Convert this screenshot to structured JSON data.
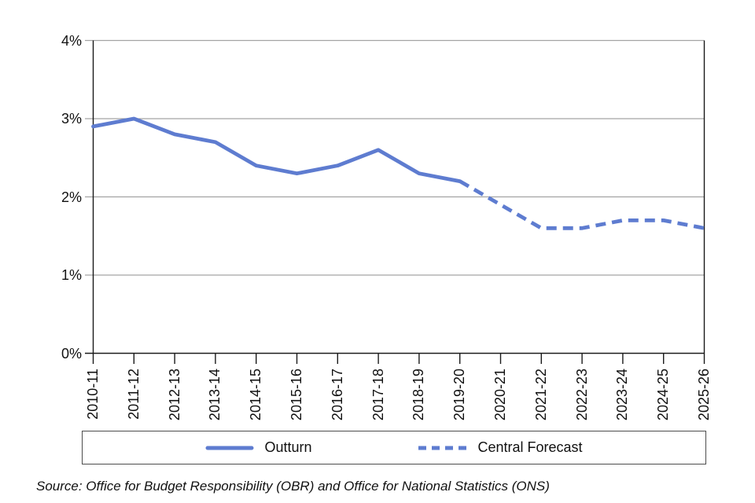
{
  "chart_data": {
    "type": "line",
    "categories": [
      "2010-11",
      "2011-12",
      "2012-13",
      "2013-14",
      "2014-15",
      "2015-16",
      "2016-17",
      "2017-18",
      "2018-19",
      "2019-20",
      "2020-21",
      "2021-22",
      "2022-23",
      "2023-24",
      "2024-25",
      "2025-26"
    ],
    "series": [
      {
        "name": "Outturn",
        "line_style": "solid",
        "start_index": 0,
        "values": [
          2.9,
          3.0,
          2.8,
          2.7,
          2.4,
          2.3,
          2.4,
          2.6,
          2.3,
          2.2
        ]
      },
      {
        "name": "Central Forecast",
        "line_style": "dashed",
        "start_index": 9,
        "values": [
          2.2,
          1.9,
          1.6,
          1.6,
          1.7,
          1.7,
          1.6
        ]
      }
    ],
    "ylim": [
      0,
      4
    ],
    "yticks": [
      {
        "value": 0,
        "label": "0%"
      },
      {
        "value": 1,
        "label": "1%"
      },
      {
        "value": 2,
        "label": "2%"
      },
      {
        "value": 3,
        "label": "3%"
      },
      {
        "value": 4,
        "label": "4%"
      }
    ],
    "grid": true,
    "legend_position": "bottom-box",
    "colors": {
      "line": "#5e7cd0",
      "gridline": "#a3a3a3",
      "axis": "#1a1a1a",
      "legend_border": "#4d4d4d",
      "text": "#111111"
    }
  },
  "source_note": "Source: Office for Budget Responsibility (OBR) and Office for National Statistics (ONS)"
}
